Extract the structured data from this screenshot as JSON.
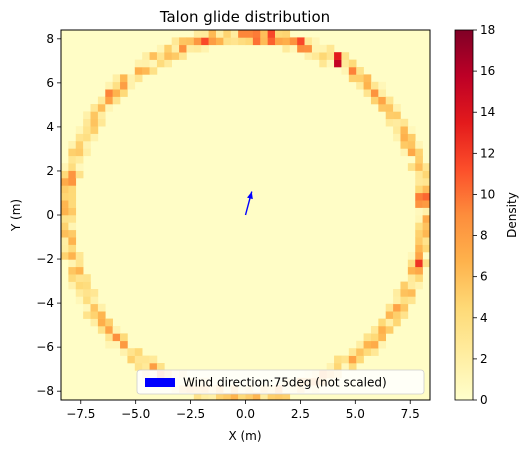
{
  "chart_data": {
    "type": "heatmap",
    "title": "Talon glide distribution",
    "xlabel": "X (m)",
    "ylabel": "Y (m)",
    "xlim": [
      -8.4,
      8.4
    ],
    "ylim": [
      -8.4,
      8.4
    ],
    "grid": false,
    "x_ticks": [
      -7.5,
      -5.0,
      -2.5,
      0.0,
      2.5,
      5.0,
      7.5
    ],
    "x_tick_labels": [
      "−7.5",
      "−5.0",
      "−2.5",
      "0.0",
      "2.5",
      "5.0",
      "7.5"
    ],
    "y_ticks": [
      -8,
      -6,
      -4,
      -2,
      0,
      2,
      4,
      6,
      8
    ],
    "y_tick_labels": [
      "−8",
      "−6",
      "−4",
      "−2",
      "0",
      "2",
      "4",
      "6",
      "8"
    ],
    "colorbar": {
      "label": "Density",
      "min": 0,
      "max": 18,
      "ticks": [
        0,
        2,
        4,
        6,
        8,
        10,
        12,
        14,
        16,
        18
      ],
      "tick_labels": [
        "0",
        "2",
        "4",
        "6",
        "8",
        "10",
        "12",
        "14",
        "16",
        "18"
      ],
      "colormap": "YlOrRd",
      "color_stops": [
        "#ffffcc",
        "#ffeda0",
        "#fed976",
        "#feb24c",
        "#fd8d3c",
        "#fc4e2a",
        "#e31a1c",
        "#bd0026",
        "#800026"
      ]
    },
    "ring": {
      "center": [
        0,
        0
      ],
      "radius": 8.15,
      "background_density": 0.3,
      "density_range": [
        1,
        10
      ]
    },
    "hotspots": [
      {
        "angle_deg": 82,
        "density": 12
      },
      {
        "angle_deg": 90,
        "density": 13
      },
      {
        "angle_deg": 73,
        "density": 14
      },
      {
        "angle_deg": 59,
        "density": 17
      },
      {
        "angle_deg": 103,
        "density": 12
      },
      {
        "angle_deg": 86,
        "density": 11
      },
      {
        "angle_deg": 5,
        "density": 13
      },
      {
        "angle_deg": -15,
        "density": 14
      },
      {
        "angle_deg": 168,
        "density": 12
      },
      {
        "angle_deg": 138,
        "density": 10
      },
      {
        "angle_deg": 27,
        "density": 9
      },
      {
        "angle_deg": -105,
        "density": 6
      }
    ],
    "arrow": {
      "origin": [
        0,
        0
      ],
      "direction_deg": 75,
      "length": 1.1,
      "color": "#0000ff"
    },
    "legend": {
      "label": "Wind direction:75deg (not scaled)",
      "color": "#0000ff",
      "placement": "lower right"
    }
  }
}
